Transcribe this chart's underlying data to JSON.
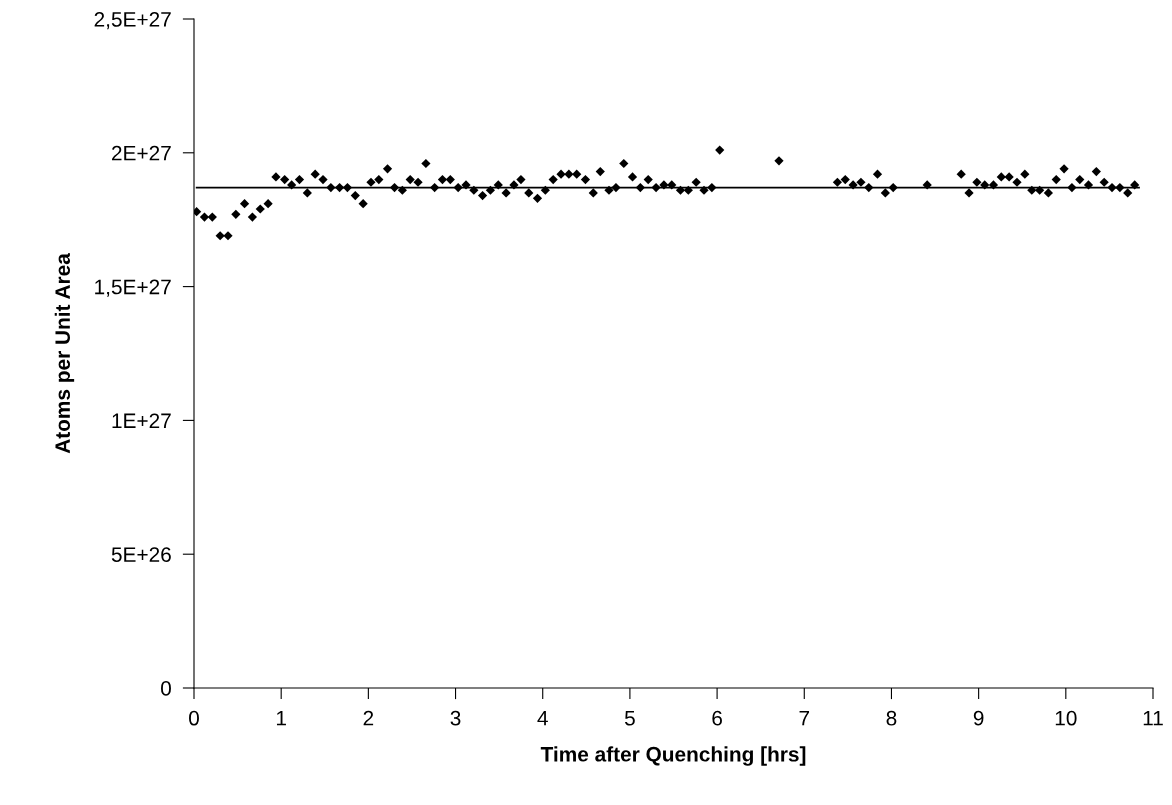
{
  "chart_data": {
    "type": "scatter",
    "xlabel": "Time after Quenching [hrs]",
    "ylabel": "Atoms per Unit Area",
    "marker": "diamond",
    "grid": false,
    "legend": false,
    "xlim": [
      0,
      11
    ],
    "xticks": [
      0,
      1,
      2,
      3,
      4,
      5,
      6,
      7,
      8,
      9,
      10,
      11
    ],
    "ylim": [
      0,
      2.5e+27
    ],
    "yticks": [
      0,
      {
        "value": 5e+26,
        "label": "5E+26"
      },
      {
        "value": 1e+27,
        "label": "1E+27"
      },
      {
        "value": 1.5e+27,
        "label": "1,5E+27"
      },
      {
        "value": 2e+27,
        "label": "2E+27"
      },
      {
        "value": 2.5e+27,
        "label": "2,5E+27"
      }
    ],
    "series": [
      {
        "color": "#000000",
        "x": [
          0.03,
          0.12,
          0.21,
          0.3,
          0.39,
          0.48,
          0.58,
          0.67,
          0.76,
          0.85,
          0.94,
          1.04,
          1.12,
          1.21,
          1.3,
          1.39,
          1.48,
          1.57,
          1.67,
          1.76,
          1.85,
          1.94,
          2.03,
          2.12,
          2.22,
          2.3,
          2.39,
          2.48,
          2.57,
          2.66,
          2.76,
          2.85,
          2.94,
          3.03,
          3.12,
          3.21,
          3.31,
          3.4,
          3.49,
          3.58,
          3.67,
          3.75,
          3.84,
          3.94,
          4.03,
          4.12,
          4.21,
          4.3,
          4.39,
          4.49,
          4.58,
          4.66,
          4.76,
          4.84,
          4.93,
          5.03,
          5.12,
          5.21,
          5.3,
          5.39,
          5.48,
          5.58,
          5.67,
          5.76,
          5.85,
          5.94,
          6.03,
          6.71,
          7.38,
          7.47,
          7.56,
          7.65,
          7.74,
          7.84,
          7.93,
          8.02,
          8.41,
          8.8,
          8.89,
          8.98,
          9.07,
          9.17,
          9.26,
          9.35,
          9.44,
          9.53,
          9.61,
          9.7,
          9.8,
          9.89,
          9.98,
          10.07,
          10.16,
          10.26,
          10.35,
          10.44,
          10.53,
          10.62,
          10.71,
          10.79
        ],
        "values": [
          1.78e+27,
          1.76e+27,
          1.76e+27,
          1.69e+27,
          1.69e+27,
          1.77e+27,
          1.81e+27,
          1.76e+27,
          1.79e+27,
          1.81e+27,
          1.91e+27,
          1.9e+27,
          1.88e+27,
          1.9e+27,
          1.85e+27,
          1.92e+27,
          1.9e+27,
          1.87e+27,
          1.87e+27,
          1.87e+27,
          1.84e+27,
          1.81e+27,
          1.89e+27,
          1.9e+27,
          1.94e+27,
          1.87e+27,
          1.86e+27,
          1.9e+27,
          1.89e+27,
          1.96e+27,
          1.87e+27,
          1.9e+27,
          1.9e+27,
          1.87e+27,
          1.88e+27,
          1.86e+27,
          1.84e+27,
          1.86e+27,
          1.88e+27,
          1.85e+27,
          1.88e+27,
          1.9e+27,
          1.85e+27,
          1.83e+27,
          1.86e+27,
          1.9e+27,
          1.92e+27,
          1.92e+27,
          1.92e+27,
          1.9e+27,
          1.85e+27,
          1.93e+27,
          1.86e+27,
          1.87e+27,
          1.96e+27,
          1.91e+27,
          1.87e+27,
          1.9e+27,
          1.87e+27,
          1.88e+27,
          1.88e+27,
          1.86e+27,
          1.86e+27,
          1.89e+27,
          1.86e+27,
          1.87e+27,
          2.01e+27,
          1.97e+27,
          1.89e+27,
          1.9e+27,
          1.88e+27,
          1.89e+27,
          1.87e+27,
          1.92e+27,
          1.85e+27,
          1.87e+27,
          1.88e+27,
          1.92e+27,
          1.85e+27,
          1.89e+27,
          1.88e+27,
          1.88e+27,
          1.91e+27,
          1.91e+27,
          1.89e+27,
          1.92e+27,
          1.86e+27,
          1.86e+27,
          1.85e+27,
          1.9e+27,
          1.94e+27,
          1.87e+27,
          1.9e+27,
          1.88e+27,
          1.93e+27,
          1.89e+27,
          1.87e+27,
          1.87e+27,
          1.85e+27,
          1.88e+27
        ]
      },
      {
        "type": "line",
        "color": "#000000",
        "marker": "none",
        "line_style": "solid",
        "x": [
          0.03,
          10.84
        ],
        "values": [
          1.87e+27,
          1.87e+27
        ]
      }
    ]
  }
}
